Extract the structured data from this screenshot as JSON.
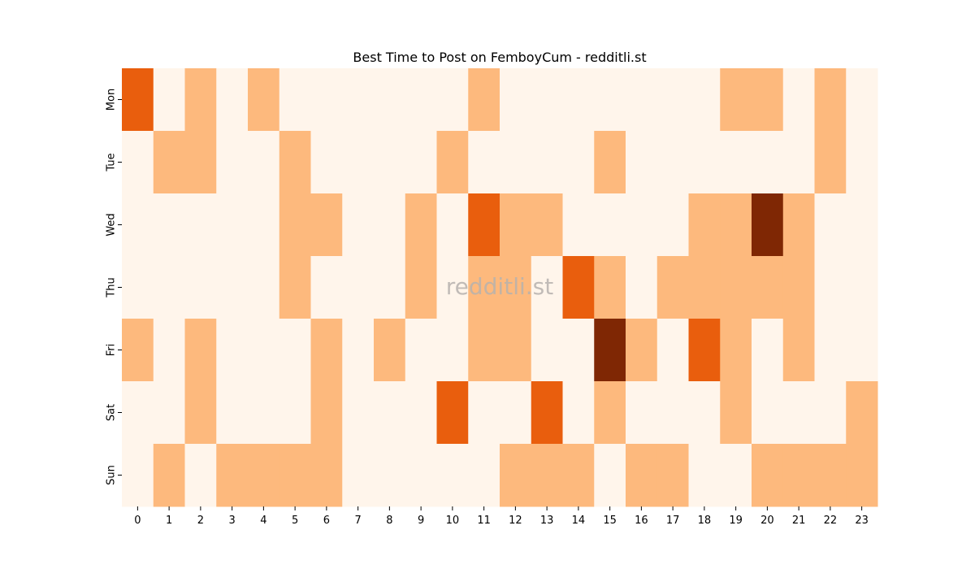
{
  "chart_data": {
    "type": "heatmap",
    "title": "Best Time to Post on FemboyCum - redditli.st",
    "watermark": "redditli.st",
    "x_categories": [
      "0",
      "1",
      "2",
      "3",
      "4",
      "5",
      "6",
      "7",
      "8",
      "9",
      "10",
      "11",
      "12",
      "13",
      "14",
      "15",
      "16",
      "17",
      "18",
      "19",
      "20",
      "21",
      "22",
      "23"
    ],
    "y_categories": [
      "Mon",
      "Tue",
      "Wed",
      "Thu",
      "Fri",
      "Sat",
      "Sun"
    ],
    "values": [
      [
        3,
        0,
        1,
        0,
        1,
        0,
        0,
        0,
        0,
        0,
        0,
        1,
        0,
        0,
        0,
        0,
        0,
        0,
        0,
        1,
        1,
        0,
        1,
        0
      ],
      [
        0,
        1,
        1,
        0,
        0,
        1,
        0,
        0,
        0,
        0,
        1,
        0,
        0,
        0,
        0,
        1,
        0,
        0,
        0,
        0,
        0,
        0,
        1,
        0
      ],
      [
        0,
        0,
        0,
        0,
        0,
        1,
        1,
        0,
        0,
        1,
        0,
        3,
        1,
        1,
        0,
        0,
        0,
        0,
        1,
        1,
        5,
        1,
        0,
        0
      ],
      [
        0,
        0,
        0,
        0,
        0,
        1,
        0,
        0,
        0,
        1,
        0,
        1,
        1,
        0,
        3,
        1,
        0,
        1,
        1,
        1,
        1,
        1,
        0,
        0
      ],
      [
        1,
        0,
        1,
        0,
        0,
        0,
        1,
        0,
        1,
        0,
        0,
        1,
        1,
        0,
        0,
        5,
        1,
        0,
        3,
        1,
        0,
        1,
        0,
        0
      ],
      [
        0,
        0,
        1,
        0,
        0,
        0,
        1,
        0,
        0,
        0,
        3,
        0,
        0,
        3,
        0,
        1,
        0,
        0,
        0,
        1,
        0,
        0,
        0,
        1
      ],
      [
        0,
        1,
        0,
        1,
        1,
        1,
        1,
        0,
        0,
        0,
        0,
        0,
        1,
        1,
        1,
        0,
        1,
        1,
        0,
        0,
        1,
        1,
        1,
        1
      ]
    ],
    "color_scale": {
      "0": "#fff5eb",
      "1": "#fdb97d",
      "3": "#e95e0d",
      "5": "#7f2704"
    },
    "colormap": "Oranges"
  }
}
